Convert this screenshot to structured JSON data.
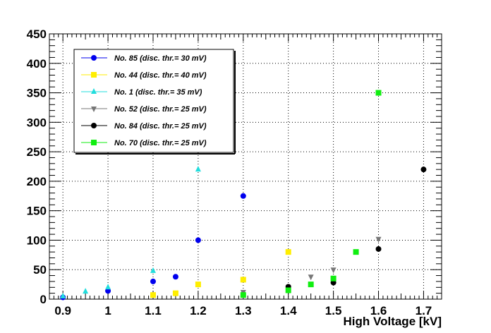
{
  "chart_data": {
    "type": "scatter",
    "title": "",
    "xlabel": "High Voltage [kV]",
    "ylabel": "",
    "xlim": [
      0.87,
      1.74
    ],
    "ylim": [
      0,
      450
    ],
    "x_ticks": [
      "0.9",
      "1",
      "1.1",
      "1.2",
      "1.3",
      "1.4",
      "1.5",
      "1.6",
      "1.7"
    ],
    "y_ticks": [
      "0",
      "50",
      "100",
      "150",
      "200",
      "250",
      "300",
      "350",
      "400",
      "450"
    ],
    "grid": true,
    "legend_position": "top-left",
    "series": [
      {
        "name": "No. 85 (disc. thr.= 30 mV)",
        "marker": "circle",
        "color": "#0000ee",
        "points": [
          [
            0.9,
            3
          ],
          [
            1.0,
            14
          ],
          [
            1.1,
            30
          ],
          [
            1.15,
            38
          ],
          [
            1.2,
            100
          ],
          [
            1.3,
            175
          ]
        ]
      },
      {
        "name": "No. 44 (disc. thr.= 40 mV)",
        "marker": "square",
        "color": "#ffee00",
        "points": [
          [
            1.1,
            7
          ],
          [
            1.15,
            10
          ],
          [
            1.2,
            25
          ],
          [
            1.3,
            33
          ],
          [
            1.4,
            80
          ]
        ]
      },
      {
        "name": "No. 1 (disc. thr.= 35 mV)",
        "marker": "triangle-up",
        "color": "#22dddd",
        "points": [
          [
            0.9,
            5
          ],
          [
            0.95,
            13
          ],
          [
            1.0,
            20
          ],
          [
            1.1,
            48
          ],
          [
            1.2,
            220
          ]
        ]
      },
      {
        "name": "No. 52 (disc. thr.= 25 mV)",
        "marker": "triangle-down",
        "color": "#777777",
        "points": [
          [
            1.3,
            12
          ],
          [
            1.4,
            20
          ],
          [
            1.45,
            38
          ],
          [
            1.5,
            50
          ],
          [
            1.6,
            102
          ]
        ]
      },
      {
        "name": "No. 84 (disc. thr.= 25 mV)",
        "marker": "circle",
        "color": "#000000",
        "points": [
          [
            1.4,
            21
          ],
          [
            1.5,
            28
          ],
          [
            1.6,
            85
          ],
          [
            1.7,
            220
          ]
        ]
      },
      {
        "name": "No. 70 (disc. thr.= 25 mV)",
        "marker": "square",
        "color": "#11ee11",
        "points": [
          [
            1.3,
            7
          ],
          [
            1.4,
            15
          ],
          [
            1.45,
            25
          ],
          [
            1.5,
            35
          ],
          [
            1.55,
            80
          ],
          [
            1.6,
            350
          ]
        ]
      }
    ]
  }
}
